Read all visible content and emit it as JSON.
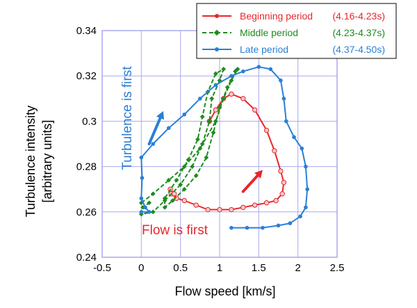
{
  "chart_data": {
    "type": "line",
    "xlabel": "Flow speed [km/s]",
    "ylabel_lines": [
      "Turbulence intensity",
      "[arbitrary units]"
    ],
    "xlim": [
      -0.5,
      2.5
    ],
    "ylim": [
      0.24,
      0.34
    ],
    "xticks": [
      -0.5,
      0,
      0.5,
      1,
      1.5,
      2,
      2.5
    ],
    "xtick_labels": [
      "-0.5",
      "0",
      "0.5",
      "1",
      "1.5",
      "2",
      "2.5"
    ],
    "yticks": [
      0.24,
      0.26,
      0.28,
      0.3,
      0.32,
      0.34
    ],
    "ytick_labels": [
      "0.24",
      "0.26",
      "0.28",
      "0.3",
      "0.32",
      "0.34"
    ],
    "grid": true,
    "legend_position": "top-right",
    "colors": {
      "beginning": "#e8262b",
      "middle": "#1e8c1e",
      "late": "#2a7fd6",
      "frame": "#a9a9ee"
    },
    "series": [
      {
        "name": "Beginning period",
        "range": "(4.16-4.23s)",
        "color": "#e8262b",
        "marker": "open-circle",
        "points": [
          [
            0.87,
            0.3
          ],
          [
            0.95,
            0.305
          ],
          [
            1.05,
            0.31
          ],
          [
            1.15,
            0.312
          ],
          [
            1.3,
            0.31
          ],
          [
            1.45,
            0.305
          ],
          [
            1.6,
            0.296
          ],
          [
            1.7,
            0.287
          ],
          [
            1.78,
            0.278
          ],
          [
            1.82,
            0.273
          ],
          [
            1.8,
            0.268
          ],
          [
            1.72,
            0.265
          ],
          [
            1.6,
            0.264
          ],
          [
            1.45,
            0.263
          ],
          [
            1.3,
            0.262
          ],
          [
            1.15,
            0.261
          ],
          [
            1.0,
            0.261
          ],
          [
            0.85,
            0.261
          ],
          [
            0.7,
            0.263
          ],
          [
            0.55,
            0.265
          ],
          [
            0.45,
            0.266
          ],
          [
            0.38,
            0.268
          ],
          [
            0.37,
            0.27
          ],
          [
            0.42,
            0.268
          ]
        ]
      },
      {
        "name": "Middle period",
        "range": "(4.23-4.37s)",
        "color": "#1e8c1e",
        "marker": "diamond",
        "points": [
          [
            0.0,
            0.264
          ],
          [
            0.15,
            0.268
          ],
          [
            0.35,
            0.274
          ],
          [
            0.55,
            0.28
          ],
          [
            0.75,
            0.288
          ],
          [
            0.95,
            0.3
          ],
          [
            1.05,
            0.31
          ],
          [
            1.15,
            0.318
          ],
          [
            1.23,
            0.323
          ],
          [
            1.2,
            0.322
          ],
          [
            1.1,
            0.315
          ],
          [
            1.0,
            0.306
          ],
          [
            0.92,
            0.295
          ],
          [
            0.83,
            0.284
          ],
          [
            0.7,
            0.276
          ],
          [
            0.55,
            0.27
          ],
          [
            0.4,
            0.265
          ],
          [
            0.3,
            0.262
          ],
          [
            0.3,
            0.266
          ],
          [
            0.45,
            0.274
          ],
          [
            0.6,
            0.283
          ],
          [
            0.72,
            0.292
          ],
          [
            0.78,
            0.302
          ],
          [
            0.85,
            0.313
          ],
          [
            0.95,
            0.321
          ],
          [
            1.05,
            0.323
          ],
          [
            1.0,
            0.318
          ],
          [
            0.9,
            0.31
          ],
          [
            0.87,
            0.3
          ],
          [
            0.78,
            0.29
          ],
          [
            0.65,
            0.28
          ],
          [
            0.5,
            0.272
          ],
          [
            0.3,
            0.265
          ],
          [
            0.15,
            0.26
          ],
          [
            0.0,
            0.259
          ],
          [
            0.02,
            0.262
          ],
          [
            0.1,
            0.264
          ]
        ]
      },
      {
        "name": "Late period",
        "range": "(4.37-4.50s)",
        "color": "#2a7fd6",
        "marker": "filled-circle",
        "points": [
          [
            0.0,
            0.26
          ],
          [
            0.1,
            0.26
          ],
          [
            0.05,
            0.262
          ],
          [
            0.0,
            0.266
          ],
          [
            0.01,
            0.275
          ],
          [
            0.0,
            0.284
          ],
          [
            0.15,
            0.29
          ],
          [
            0.35,
            0.297
          ],
          [
            0.55,
            0.303
          ],
          [
            0.75,
            0.31
          ],
          [
            0.95,
            0.316
          ],
          [
            1.15,
            0.32
          ],
          [
            1.3,
            0.322
          ],
          [
            1.5,
            0.324
          ],
          [
            1.65,
            0.323
          ],
          [
            1.78,
            0.318
          ],
          [
            1.82,
            0.31
          ],
          [
            1.85,
            0.3
          ],
          [
            1.95,
            0.293
          ],
          [
            2.05,
            0.288
          ],
          [
            2.1,
            0.28
          ],
          [
            2.12,
            0.27
          ],
          [
            2.1,
            0.262
          ],
          [
            2.03,
            0.258
          ],
          [
            1.9,
            0.255
          ],
          [
            1.75,
            0.254
          ],
          [
            1.55,
            0.253
          ],
          [
            1.35,
            0.253
          ],
          [
            1.15,
            0.253
          ]
        ]
      }
    ],
    "annotations": [
      {
        "text": "Turbulence is first",
        "color": "#2a7fd6",
        "at": [
          -0.2,
          0.305
        ],
        "rotate": -90
      },
      {
        "text": "Flow is first",
        "color": "#e8262b",
        "at": [
          0.5,
          0.2525
        ],
        "rotate": 0
      }
    ],
    "arrows": [
      {
        "color": "#2a7fd6",
        "from": [
          0.1,
          0.29
        ],
        "to": [
          0.28,
          0.3045
        ]
      },
      {
        "color": "#e8262b",
        "from": [
          1.3,
          0.269
        ],
        "to": [
          1.55,
          0.2785
        ]
      }
    ]
  }
}
